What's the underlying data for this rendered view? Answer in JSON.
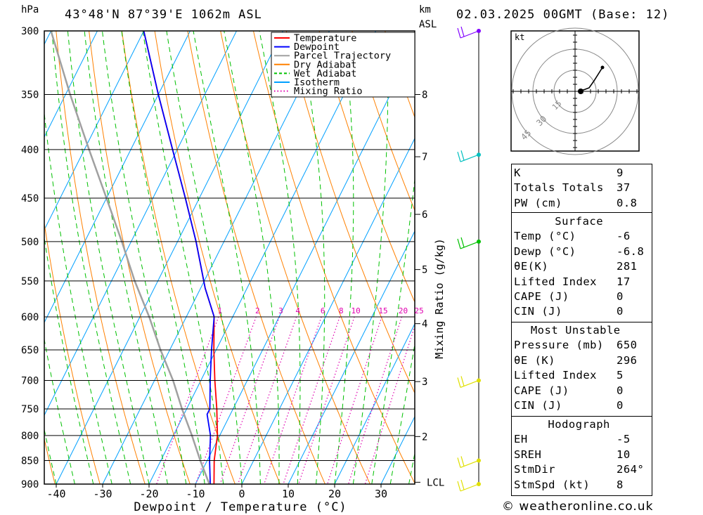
{
  "header": {
    "pressure_unit": "hPa",
    "location": "43°48'N 87°39'E 1062m ASL",
    "height_unit_line1": "km",
    "height_unit_line2": "ASL",
    "datetime": "02.03.2025 00GMT (Base: 12)"
  },
  "footer": {
    "credit": "© weatheronline.co.uk"
  },
  "chart_data": {
    "type": "line",
    "title": "43°48'N 87°39'E 1062m ASL",
    "xlabel": "Dewpoint / Temperature (°C)",
    "ylabel": "hPa",
    "right_axis_label": "Mixing Ratio (g/kg)",
    "xlim": [
      -45,
      37
    ],
    "ylim": [
      900,
      300
    ],
    "x_ticks": [
      -40,
      -30,
      -20,
      -10,
      0,
      10,
      20,
      30
    ],
    "pressure_levels": [
      300,
      350,
      400,
      450,
      500,
      550,
      600,
      650,
      700,
      750,
      800,
      850,
      900
    ],
    "km_ticks": [
      {
        "label": "8",
        "p": 350
      },
      {
        "label": "7",
        "p": 407
      },
      {
        "label": "6",
        "p": 468
      },
      {
        "label": "5",
        "p": 535
      },
      {
        "label": "4",
        "p": 610
      },
      {
        "label": "3",
        "p": 702
      },
      {
        "label": "2",
        "p": 802
      },
      {
        "label": "LCL",
        "p": 896
      }
    ],
    "mixing_ratio_labels": [
      "1",
      "2",
      "3",
      "4",
      "6",
      "8",
      "10",
      "15",
      "20",
      "25"
    ],
    "legend": [
      "Temperature",
      "Dewpoint",
      "Parcel Trajectory",
      "Dry Adiabat",
      "Wet Adiabat",
      "Isotherm",
      "Mixing Ratio"
    ],
    "legend_position": "top-right",
    "colors": {
      "temperature": "#ff0000",
      "dewpoint": "#0000ff",
      "parcel": "#a0a0a0",
      "dry_adiabat": "#ff8000",
      "wet_adiabat": "#00c000",
      "isotherm": "#00a0ff",
      "mixing_ratio": "#e000b0"
    },
    "series": [
      {
        "name": "Temperature",
        "points": [
          [
            900,
            -6
          ],
          [
            850,
            -8.5
          ],
          [
            800,
            -10.5
          ],
          [
            750,
            -13.5
          ],
          [
            700,
            -17
          ],
          [
            650,
            -20.5
          ],
          [
            600,
            -24
          ],
          [
            560,
            -29
          ],
          [
            500,
            -36
          ],
          [
            450,
            -43
          ],
          [
            400,
            -51
          ],
          [
            350,
            -60
          ],
          [
            300,
            -70
          ]
        ]
      },
      {
        "name": "Dewpoint",
        "points": [
          [
            900,
            -6.8
          ],
          [
            850,
            -9.5
          ],
          [
            800,
            -12
          ],
          [
            760,
            -15
          ],
          [
            750,
            -15
          ],
          [
            700,
            -18
          ],
          [
            650,
            -21
          ],
          [
            600,
            -24
          ],
          [
            560,
            -29
          ],
          [
            500,
            -36
          ],
          [
            450,
            -43
          ],
          [
            400,
            -51
          ],
          [
            350,
            -60
          ],
          [
            300,
            -70
          ]
        ]
      },
      {
        "name": "Parcel Trajectory",
        "points": [
          [
            900,
            -7
          ],
          [
            850,
            -11.5
          ],
          [
            800,
            -16
          ],
          [
            750,
            -21
          ],
          [
            700,
            -26
          ],
          [
            650,
            -32
          ],
          [
            600,
            -38
          ],
          [
            550,
            -45
          ],
          [
            500,
            -52
          ],
          [
            450,
            -60
          ],
          [
            400,
            -69
          ],
          [
            350,
            -79
          ],
          [
            300,
            -90
          ]
        ]
      }
    ],
    "wind_profile": [
      {
        "p": 300,
        "color": "#8000ff"
      },
      {
        "p": 405,
        "color": "#00c0c0"
      },
      {
        "p": 500,
        "color": "#00c000"
      },
      {
        "p": 700,
        "color": "#e0e000"
      },
      {
        "p": 850,
        "color": "#e0e000"
      },
      {
        "p": 900,
        "color": "#e0e000"
      }
    ],
    "hodograph": {
      "unit_label": "kt",
      "ring_labels": [
        "15",
        "30",
        "45"
      ]
    }
  },
  "indices": {
    "basic": [
      {
        "label": "K",
        "value": "9"
      },
      {
        "label": "Totals Totals",
        "value": "37"
      },
      {
        "label": "PW (cm)",
        "value": "0.8"
      }
    ],
    "surface": {
      "title": "Surface",
      "rows": [
        {
          "label": "Temp (°C)",
          "value": "-6"
        },
        {
          "label": "Dewp (°C)",
          "value": "-6.8"
        },
        {
          "label": "θE(K)",
          "value": "281"
        },
        {
          "label": "Lifted Index",
          "value": "17"
        },
        {
          "label": "CAPE (J)",
          "value": "0"
        },
        {
          "label": "CIN (J)",
          "value": "0"
        }
      ]
    },
    "most_unstable": {
      "title": "Most Unstable",
      "rows": [
        {
          "label": "Pressure (mb)",
          "value": "650"
        },
        {
          "label": "θE (K)",
          "value": "296"
        },
        {
          "label": "Lifted Index",
          "value": "5"
        },
        {
          "label": "CAPE (J)",
          "value": "0"
        },
        {
          "label": "CIN (J)",
          "value": "0"
        }
      ]
    },
    "hodograph": {
      "title": "Hodograph",
      "rows": [
        {
          "label": "EH",
          "value": "-5"
        },
        {
          "label": "SREH",
          "value": "10"
        },
        {
          "label": "StmDir",
          "value": "264°"
        },
        {
          "label": "StmSpd (kt)",
          "value": "8"
        }
      ]
    }
  }
}
